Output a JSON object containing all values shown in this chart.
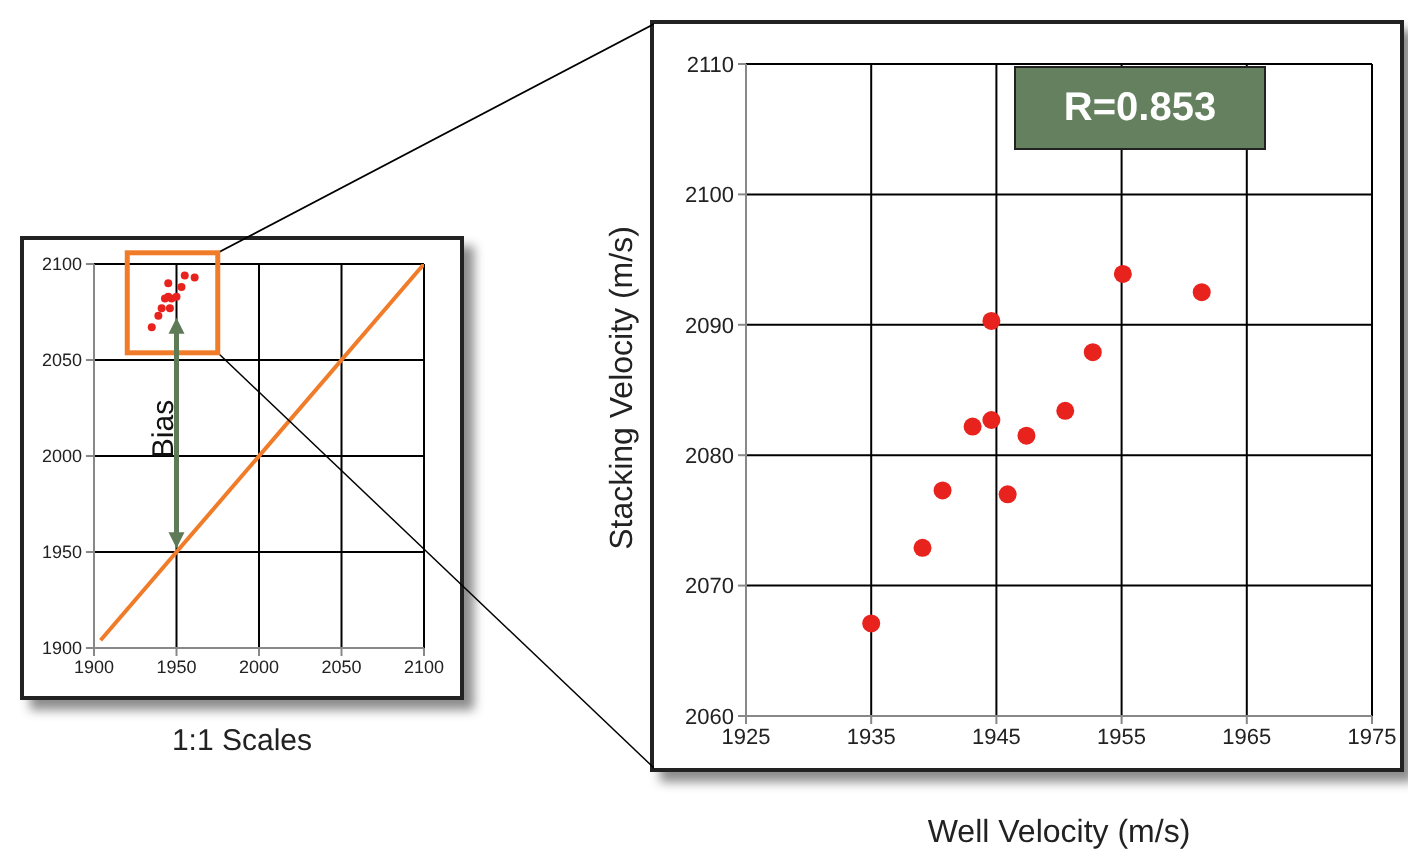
{
  "chart_data": [
    {
      "type": "scatter",
      "title": "1:1 Scales",
      "annotations": [
        "Bias"
      ],
      "xlim": [
        1900,
        2100
      ],
      "ylim": [
        1900,
        2100
      ],
      "xticks": [
        1900,
        1950,
        2000,
        2050,
        2100
      ],
      "yticks": [
        1900,
        1950,
        2000,
        2050,
        2100
      ],
      "grid": true,
      "marker": "circle",
      "series": [
        {
          "color": "#e8221c",
          "x": [
            1935,
            1939,
            1941,
            1943,
            1945,
            1945,
            1946,
            1947,
            1950,
            1953,
            1955,
            1961
          ],
          "values": [
            2067,
            2073,
            2077,
            2082,
            2083,
            2090,
            2077,
            2082,
            2083,
            2088,
            2094,
            2093
          ]
        },
        {
          "type": "line",
          "color": "#f07c2a",
          "marker": "none",
          "x": [
            1904,
            2100
          ],
          "values": [
            1904,
            2100
          ]
        }
      ]
    },
    {
      "type": "scatter",
      "xlabel": "Well Velocity (m/s)",
      "ylabel": "Stacking Velocity (m/s)",
      "annotations": [
        "R=0.853"
      ],
      "xlim": [
        1925,
        1975
      ],
      "ylim": [
        2060,
        2110
      ],
      "xticks": [
        1925,
        1935,
        1945,
        1955,
        1965,
        1975
      ],
      "yticks": [
        2060,
        2070,
        2080,
        2090,
        2100,
        2110
      ],
      "grid": true,
      "marker": "circle",
      "series": [
        {
          "color": "#e8221c",
          "x": [
            1935.0,
            1939.1,
            1940.7,
            1943.1,
            1944.6,
            1944.6,
            1945.9,
            1947.4,
            1950.5,
            1952.7,
            1955.1,
            1961.4
          ],
          "values": [
            2067.1,
            2072.9,
            2077.3,
            2082.2,
            2082.7,
            2090.3,
            2077.0,
            2081.5,
            2083.4,
            2087.9,
            2093.9,
            2092.5
          ]
        }
      ]
    }
  ]
}
